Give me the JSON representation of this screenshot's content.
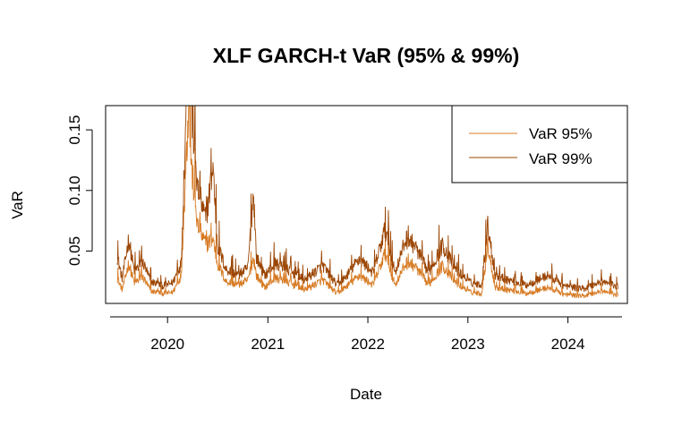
{
  "chart_data": {
    "type": "line",
    "title": "XLF GARCH-t VaR (95% & 99%)",
    "xlabel": "Date",
    "ylabel": "VaR",
    "x_range": [
      "2019-07-01",
      "2024-07-01"
    ],
    "xlim": [
      "2019-05-20",
      "2024-08-05"
    ],
    "ylim": [
      0.0068,
      0.17
    ],
    "x_ticks": [
      "2020",
      "2021",
      "2022",
      "2023",
      "2024"
    ],
    "y_ticks": [
      0.05,
      0.1,
      0.15
    ],
    "y_tick_labels": [
      "0.05",
      "0.10",
      "0.15"
    ],
    "legend_position": "top-right",
    "series": [
      {
        "name": "VaR 95%",
        "color": "#d77b24",
        "anchors": [
          [
            "2019-07-01",
            0.028
          ],
          [
            "2019-07-20",
            0.018
          ],
          [
            "2019-08-12",
            0.04
          ],
          [
            "2019-09-01",
            0.024
          ],
          [
            "2019-10-05",
            0.028
          ],
          [
            "2019-11-01",
            0.017
          ],
          [
            "2019-12-15",
            0.015
          ],
          [
            "2020-01-20",
            0.016
          ],
          [
            "2020-02-20",
            0.03
          ],
          [
            "2020-03-05",
            0.105
          ],
          [
            "2020-03-18",
            0.17
          ],
          [
            "2020-03-28",
            0.12
          ],
          [
            "2020-04-20",
            0.07
          ],
          [
            "2020-05-20",
            0.055
          ],
          [
            "2020-06-15",
            0.06
          ],
          [
            "2020-07-01",
            0.04
          ],
          [
            "2020-08-01",
            0.025
          ],
          [
            "2020-09-15",
            0.022
          ],
          [
            "2020-10-20",
            0.026
          ],
          [
            "2020-11-10",
            0.045
          ],
          [
            "2020-11-20",
            0.03
          ],
          [
            "2020-12-20",
            0.02
          ],
          [
            "2021-01-28",
            0.028
          ],
          [
            "2021-03-05",
            0.025
          ],
          [
            "2021-05-15",
            0.018
          ],
          [
            "2021-07-20",
            0.026
          ],
          [
            "2021-09-10",
            0.015
          ],
          [
            "2021-10-10",
            0.02
          ],
          [
            "2021-12-01",
            0.03
          ],
          [
            "2022-01-20",
            0.022
          ],
          [
            "2022-03-05",
            0.048
          ],
          [
            "2022-04-10",
            0.022
          ],
          [
            "2022-05-20",
            0.04
          ],
          [
            "2022-06-20",
            0.038
          ],
          [
            "2022-08-10",
            0.022
          ],
          [
            "2022-10-01",
            0.038
          ],
          [
            "2022-11-15",
            0.024
          ],
          [
            "2023-01-10",
            0.016
          ],
          [
            "2023-02-20",
            0.015
          ],
          [
            "2023-03-15",
            0.055
          ],
          [
            "2023-04-10",
            0.02
          ],
          [
            "2023-06-01",
            0.018
          ],
          [
            "2023-08-01",
            0.015
          ],
          [
            "2023-10-20",
            0.02
          ],
          [
            "2023-12-20",
            0.014
          ],
          [
            "2024-03-01",
            0.013
          ],
          [
            "2024-05-01",
            0.017
          ],
          [
            "2024-07-01",
            0.014
          ]
        ]
      },
      {
        "name": "VaR 99%",
        "color": "#9b4401",
        "anchors": [
          [
            "2019-07-01",
            0.046
          ],
          [
            "2019-07-20",
            0.027
          ],
          [
            "2019-08-12",
            0.06
          ],
          [
            "2019-09-01",
            0.034
          ],
          [
            "2019-10-05",
            0.04
          ],
          [
            "2019-11-01",
            0.025
          ],
          [
            "2019-12-15",
            0.021
          ],
          [
            "2020-01-20",
            0.024
          ],
          [
            "2020-02-20",
            0.04
          ],
          [
            "2020-03-05",
            0.14
          ],
          [
            "2020-03-18",
            0.24
          ],
          [
            "2020-03-28",
            0.17
          ],
          [
            "2020-04-20",
            0.1
          ],
          [
            "2020-05-20",
            0.075
          ],
          [
            "2020-06-15",
            0.12
          ],
          [
            "2020-07-01",
            0.055
          ],
          [
            "2020-08-01",
            0.035
          ],
          [
            "2020-09-15",
            0.03
          ],
          [
            "2020-10-20",
            0.036
          ],
          [
            "2020-11-10",
            0.1
          ],
          [
            "2020-11-20",
            0.045
          ],
          [
            "2020-12-20",
            0.03
          ],
          [
            "2021-01-28",
            0.04
          ],
          [
            "2021-03-05",
            0.036
          ],
          [
            "2021-05-15",
            0.026
          ],
          [
            "2021-07-20",
            0.038
          ],
          [
            "2021-09-10",
            0.022
          ],
          [
            "2021-10-10",
            0.028
          ],
          [
            "2021-12-01",
            0.044
          ],
          [
            "2022-01-20",
            0.032
          ],
          [
            "2022-03-05",
            0.068
          ],
          [
            "2022-04-10",
            0.032
          ],
          [
            "2022-05-20",
            0.06
          ],
          [
            "2022-06-20",
            0.055
          ],
          [
            "2022-08-10",
            0.032
          ],
          [
            "2022-10-01",
            0.055
          ],
          [
            "2022-11-15",
            0.035
          ],
          [
            "2023-01-10",
            0.024
          ],
          [
            "2023-02-20",
            0.022
          ],
          [
            "2023-03-15",
            0.072
          ],
          [
            "2023-04-10",
            0.03
          ],
          [
            "2023-06-01",
            0.026
          ],
          [
            "2023-08-01",
            0.022
          ],
          [
            "2023-10-20",
            0.03
          ],
          [
            "2023-12-20",
            0.021
          ],
          [
            "2024-03-01",
            0.019
          ],
          [
            "2024-05-01",
            0.025
          ],
          [
            "2024-07-01",
            0.021
          ]
        ]
      }
    ]
  }
}
